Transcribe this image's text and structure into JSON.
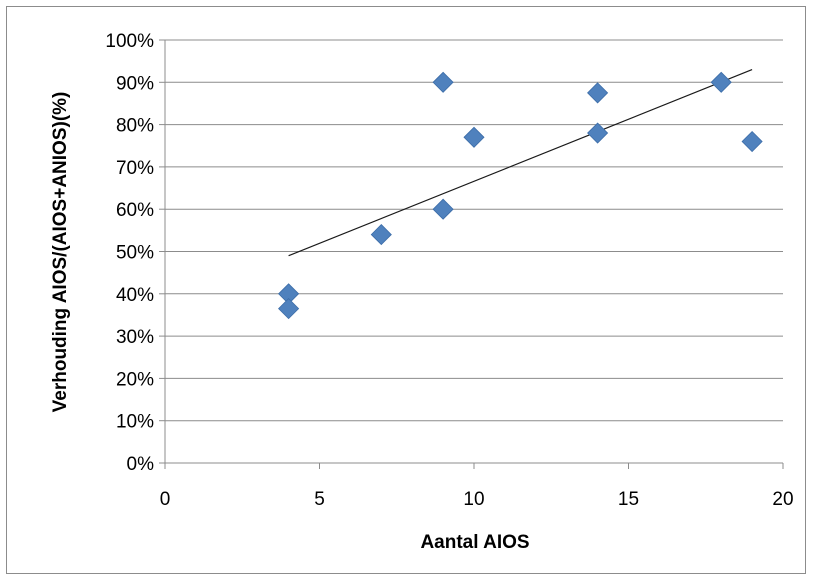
{
  "chart_data": {
    "type": "scatter",
    "title": "",
    "xlabel": "Aantal AIOS",
    "ylabel": "Verhouding AIOS/(AIOS+ANIOS)(%)",
    "xlim": [
      0,
      20
    ],
    "ylim": [
      0,
      100
    ],
    "x_ticks": [
      "0",
      "5",
      "10",
      "15",
      "20"
    ],
    "y_ticks": [
      "0%",
      "10%",
      "20%",
      "30%",
      "40%",
      "50%",
      "60%",
      "70%",
      "80%",
      "90%",
      "100%"
    ],
    "grid": "horizontal",
    "marker_color": "#4f81bd",
    "trendline_color": "#1a1a1a",
    "series": [
      {
        "points": [
          {
            "x": 4,
            "y": 40
          },
          {
            "x": 4,
            "y": 36.5
          },
          {
            "x": 7,
            "y": 54
          },
          {
            "x": 9,
            "y": 90
          },
          {
            "x": 9,
            "y": 60
          },
          {
            "x": 10,
            "y": 77
          },
          {
            "x": 14,
            "y": 87.5
          },
          {
            "x": 14,
            "y": 78
          },
          {
            "x": 18,
            "y": 90
          },
          {
            "x": 19,
            "y": 76
          }
        ]
      }
    ],
    "trendline": {
      "from": {
        "x": 4,
        "y": 49
      },
      "to": {
        "x": 19,
        "y": 93
      }
    }
  }
}
